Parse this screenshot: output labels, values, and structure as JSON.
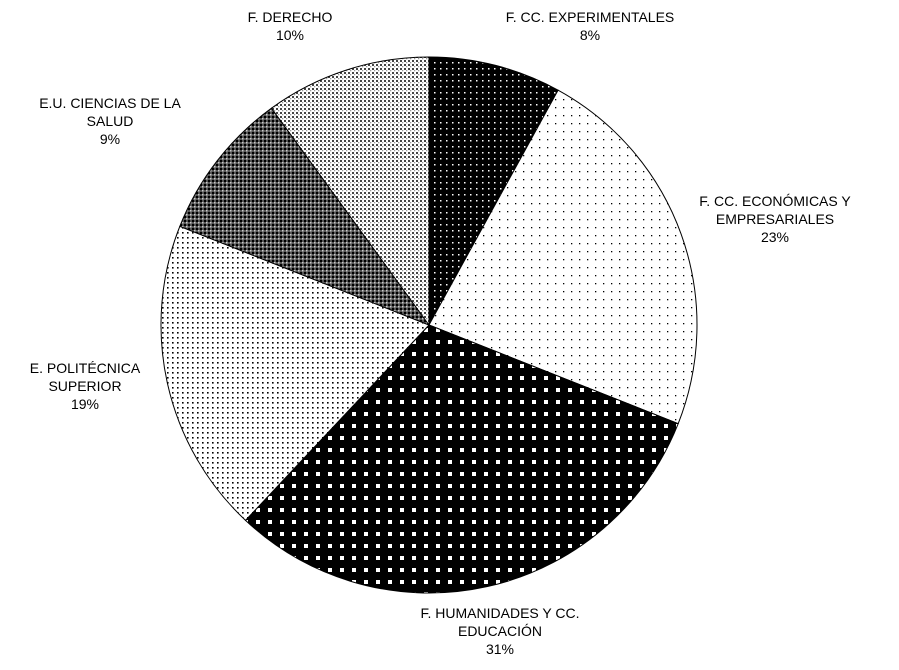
{
  "chart_data": {
    "type": "pie",
    "categories": [
      "F. CC. EXPERIMENTALES",
      "F. CC. ECONÓMICAS Y EMPRESARIALES",
      "F. HUMANIDADES Y CC. EDUCACIÓN",
      "E. POLITÉCNICA SUPERIOR",
      "E.U. CIENCIAS DE LA SALUD",
      "F. DERECHO"
    ],
    "values": [
      8,
      23,
      31,
      19,
      9,
      10
    ],
    "value_labels": [
      "8%",
      "23%",
      "31%",
      "19%",
      "9%",
      "10%"
    ]
  }
}
